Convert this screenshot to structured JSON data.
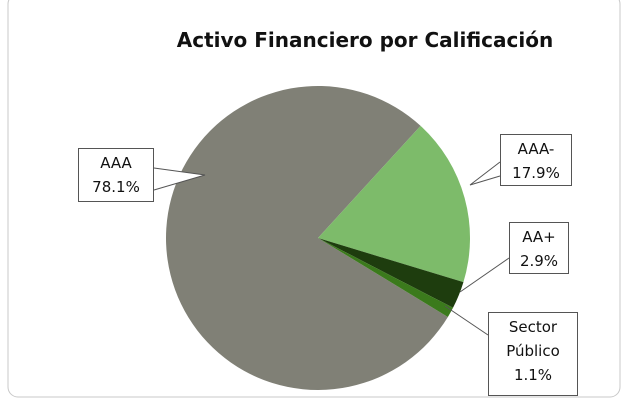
{
  "chart_data": {
    "type": "pie",
    "title": "Activo Financiero por Calificación",
    "categories": [
      "AAA",
      "AAA-",
      "AA+",
      "Sector Público"
    ],
    "values": [
      78.1,
      17.9,
      2.9,
      1.1
    ],
    "value_labels": [
      "78.1%",
      "17.9%",
      "2.9%",
      "1.1%"
    ],
    "colors": [
      "#808076",
      "#7dbb6a",
      "#1e3d0e",
      "#3b7a1c"
    ]
  }
}
